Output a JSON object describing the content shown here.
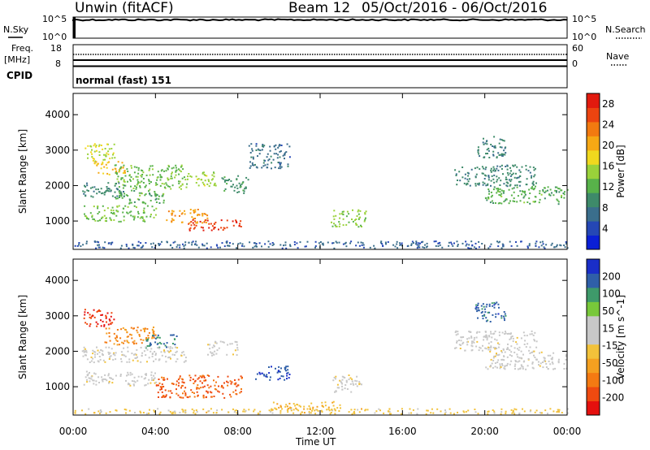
{
  "header": {
    "radar": "Unwin (fitACF)",
    "beam": "Beam 12",
    "date_range": "05/Oct/2016 - 06/Oct/2016"
  },
  "strip_panels": {
    "nsky_label": "N.Sky",
    "nsky_ticks": [
      "10^5",
      "10^0"
    ],
    "nsearch_label": "N.Search",
    "nsearch_ticks": [
      "10^5",
      "10^0"
    ],
    "freq_label_1": "Freq.",
    "freq_label_2": "[MHz]",
    "freq_ticks": [
      "18",
      "8"
    ],
    "nave_label": "Nave",
    "nave_ticks": [
      "60",
      "0"
    ],
    "cpid_label": "CPID",
    "cpid_value": "normal (fast) 151"
  },
  "colors": {
    "power_scale": [
      "#0a1fd6",
      "#2547b5",
      "#3a6e8c",
      "#3e8a6a",
      "#58b24a",
      "#9ad23a",
      "#f0d81e",
      "#f6a814",
      "#f27a10",
      "#ec4410",
      "#e21a0e"
    ],
    "velocity_scale": [
      "#e5100e",
      "#ef4a10",
      "#f47a12",
      "#f4a020",
      "#f2c23a",
      "#c8c8c8",
      "#c8c8c8",
      "#78c83a",
      "#3e9a6a",
      "#2f5fa8",
      "#1a2ec8"
    ]
  },
  "chart_data": [
    {
      "type": "heatmap",
      "panel": "power",
      "ylabel": "Slant Range [km]",
      "yticks": [
        "1000",
        "2000",
        "3000",
        "4000"
      ],
      "ylim": [
        200,
        4600
      ],
      "xticks": [
        "00:00",
        "04:00",
        "08:00",
        "12:00",
        "16:00",
        "20:00",
        "00:00"
      ],
      "xlim_hours": [
        0,
        24
      ],
      "colorbar_label": "Power [dB]",
      "colorbar_ticks": [
        "4",
        "8",
        "12",
        "16",
        "20",
        "24",
        "28"
      ],
      "colorbar_range": [
        0,
        30
      ],
      "echo_regions": [
        {
          "t0": 0.5,
          "t1": 2.0,
          "r0": 2700,
          "r1": 3200,
          "v": 16
        },
        {
          "t0": 1.0,
          "t1": 2.5,
          "r0": 2300,
          "r1": 2700,
          "v": 20
        },
        {
          "t0": 2.0,
          "t1": 5.5,
          "r0": 1900,
          "r1": 2600,
          "v": 13
        },
        {
          "t0": 0.4,
          "t1": 2.5,
          "r0": 1700,
          "r1": 2100,
          "v": 9
        },
        {
          "t0": 2.0,
          "t1": 4.5,
          "r0": 1500,
          "r1": 1900,
          "v": 12
        },
        {
          "t0": 0.5,
          "t1": 4.0,
          "r0": 1000,
          "r1": 1450,
          "v": 13
        },
        {
          "t0": 4.5,
          "t1": 6.5,
          "r0": 950,
          "r1": 1350,
          "v": 21
        },
        {
          "t0": 5.5,
          "t1": 8.2,
          "r0": 750,
          "r1": 1050,
          "v": 27
        },
        {
          "t0": 5.5,
          "t1": 7.0,
          "r0": 2000,
          "r1": 2400,
          "v": 15
        },
        {
          "t0": 7.2,
          "t1": 8.5,
          "r0": 1800,
          "r1": 2300,
          "v": 10
        },
        {
          "t0": 8.5,
          "t1": 10.5,
          "r0": 2500,
          "r1": 3200,
          "v": 7
        },
        {
          "t0": 12.5,
          "t1": 14.2,
          "r0": 850,
          "r1": 1350,
          "v": 14
        },
        {
          "t0": 19.5,
          "t1": 21.0,
          "r0": 2800,
          "r1": 3400,
          "v": 9
        },
        {
          "t0": 18.5,
          "t1": 22.5,
          "r0": 2000,
          "r1": 2600,
          "v": 9
        },
        {
          "t0": 20.0,
          "t1": 24.0,
          "r0": 1500,
          "r1": 2000,
          "v": 12
        },
        {
          "t0": 0.0,
          "t1": 24.0,
          "r0": 250,
          "r1": 450,
          "v": 6
        }
      ]
    },
    {
      "type": "heatmap",
      "panel": "velocity",
      "ylabel": "Slant Range [km]",
      "yticks": [
        "1000",
        "2000",
        "3000",
        "4000"
      ],
      "ylim": [
        200,
        4600
      ],
      "xticks": [
        "00:00",
        "04:00",
        "08:00",
        "12:00",
        "16:00",
        "20:00",
        "00:00"
      ],
      "xlim_hours": [
        0,
        24
      ],
      "xlabel": "Time UT",
      "colorbar_label": "Velocity [m s^-1]",
      "colorbar_ticks": [
        "-200",
        "-100",
        "-50",
        "-15",
        "15",
        "50",
        "100",
        "200"
      ],
      "colorbar_range": [
        -250,
        250
      ],
      "echo_regions": [
        {
          "t0": 0.5,
          "t1": 2.0,
          "r0": 2700,
          "r1": 3200,
          "v": -200
        },
        {
          "t0": 1.5,
          "t1": 4.0,
          "r0": 2200,
          "r1": 2700,
          "v": -120
        },
        {
          "t0": 3.5,
          "t1": 5.0,
          "r0": 2100,
          "r1": 2500,
          "v": 150
        },
        {
          "t0": 0.4,
          "t1": 5.5,
          "r0": 1700,
          "r1": 2150,
          "v": 0
        },
        {
          "t0": 0.5,
          "t1": 4.0,
          "r0": 1050,
          "r1": 1450,
          "v": 0
        },
        {
          "t0": 4.0,
          "t1": 8.2,
          "r0": 700,
          "r1": 1350,
          "v": -170
        },
        {
          "t0": 6.5,
          "t1": 8.0,
          "r0": 1900,
          "r1": 2300,
          "v": 0
        },
        {
          "t0": 8.8,
          "t1": 10.5,
          "r0": 1200,
          "r1": 1600,
          "v": 200
        },
        {
          "t0": 12.5,
          "t1": 14.0,
          "r0": 850,
          "r1": 1350,
          "v": 0
        },
        {
          "t0": 9.5,
          "t1": 13.0,
          "r0": 350,
          "r1": 600,
          "v": -60
        },
        {
          "t0": 19.5,
          "t1": 21.0,
          "r0": 2800,
          "r1": 3400,
          "v": 180
        },
        {
          "t0": 18.5,
          "t1": 22.5,
          "r0": 2000,
          "r1": 2600,
          "v": 0
        },
        {
          "t0": 20.0,
          "t1": 24.0,
          "r0": 1500,
          "r1": 2000,
          "v": 0
        },
        {
          "t0": 0.0,
          "t1": 24.0,
          "r0": 250,
          "r1": 400,
          "v": -40
        }
      ]
    }
  ]
}
